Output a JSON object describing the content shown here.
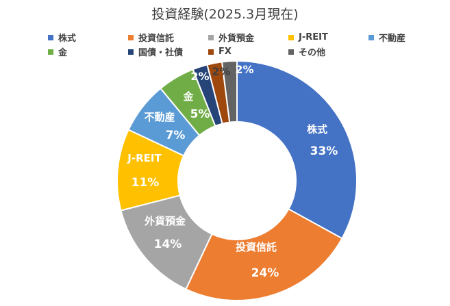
{
  "chart_data": {
    "type": "pie",
    "variant": "donut",
    "title": "投資経験(2025.3月現在)",
    "legend_position": "top",
    "categories": [
      "株式",
      "投資信託",
      "外貨預金",
      "J-REIT",
      "不動産",
      "金",
      "国債・社債",
      "FX",
      "その他"
    ],
    "values": [
      33,
      24,
      14,
      11,
      7,
      5,
      2,
      2,
      2
    ],
    "value_labels": [
      "33%",
      "24%",
      "14%",
      "11%",
      "7%",
      "5%",
      "2%",
      "2%",
      "2%"
    ],
    "colors": [
      "#4472C4",
      "#ED7D31",
      "#A5A5A5",
      "#FFC000",
      "#5B9BD5",
      "#70AD47",
      "#264478",
      "#9E480E",
      "#636363"
    ],
    "label_colors": [
      "#ffffff",
      "#ffffff",
      "#ffffff",
      "#ffffff",
      "#ffffff",
      "#ffffff",
      "#ffffff",
      "#404040",
      "#ffffff"
    ],
    "show_category_in_label": [
      true,
      true,
      true,
      true,
      true,
      true,
      false,
      false,
      false
    ]
  }
}
